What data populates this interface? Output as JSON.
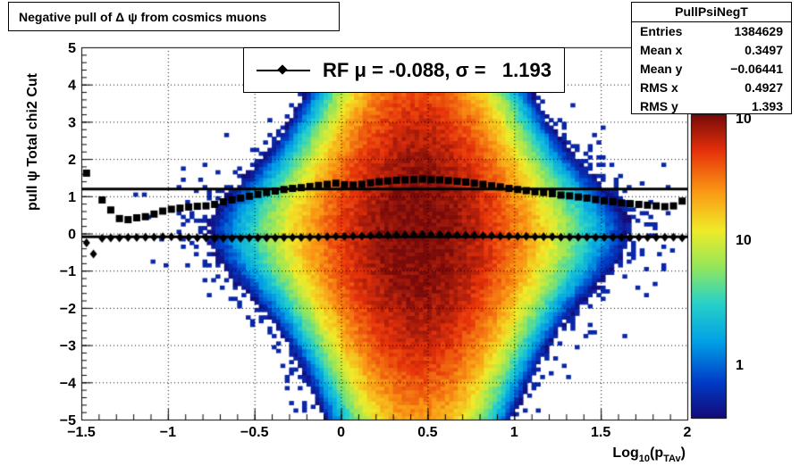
{
  "title": "Negative pull of Δ ψ from cosmics muons",
  "stats": {
    "name": "PullPsiNegT",
    "rows": [
      {
        "label": "Entries",
        "value": "1384629"
      },
      {
        "label": "Mean x",
        "value": "0.3497"
      },
      {
        "label": "Mean y",
        "value": "−0.06441"
      },
      {
        "label": "RMS x",
        "value": "0.4927"
      },
      {
        "label": "RMS y",
        "value": "1.393"
      }
    ]
  },
  "legend": {
    "text": "RF μ = -0.088, σ =   1.193"
  },
  "colors": {
    "frame": "#000000",
    "marker": "#000000"
  },
  "chart_data": {
    "type": "heatmap",
    "xlabel": "Log10(pTAv)",
    "xlabel_main": "Log",
    "xlabel_sub1": "10",
    "xlabel_mid": "(p",
    "xlabel_sub2": "TAv",
    "xlabel_end": ")",
    "ylabel": "pull ψ   Total chi2 Cut",
    "xlim": [
      -1.5,
      2
    ],
    "ylim": [
      -5,
      5
    ],
    "xticks": [
      -1.5,
      -1,
      -0.5,
      0,
      0.5,
      1,
      1.5,
      2
    ],
    "xtick_labels": [
      "−1.5",
      "−1",
      "−0.5",
      "0",
      "0.5",
      "1",
      "1.5",
      "2"
    ],
    "yticks": [
      -5,
      -4,
      -3,
      -2,
      -1,
      0,
      1,
      2,
      3,
      4,
      5
    ],
    "ytick_labels": [
      "−5",
      "−4",
      "−3",
      "−2",
      "−1",
      "0",
      "1",
      "2",
      "3",
      "4",
      "5"
    ],
    "grid": true,
    "colorbar": {
      "scale": "log",
      "labels": [
        "1",
        "10",
        "10"
      ],
      "label_values": [
        1,
        10,
        100
      ]
    },
    "series": [
      {
        "marker": "square",
        "points": [
          [
            -1.47,
            1.62
          ],
          [
            -1.38,
            0.9
          ],
          [
            -1.33,
            0.63
          ],
          [
            -1.28,
            0.4
          ],
          [
            -1.23,
            0.37
          ],
          [
            -1.18,
            0.42
          ],
          [
            -1.13,
            0.45
          ],
          [
            -1.08,
            0.52
          ],
          [
            -1.03,
            0.6
          ],
          [
            -0.98,
            0.65
          ],
          [
            -0.93,
            0.68
          ],
          [
            -0.88,
            0.71
          ],
          [
            -0.83,
            0.73
          ],
          [
            -0.78,
            0.74
          ],
          [
            -0.73,
            0.78
          ],
          [
            -0.68,
            0.85
          ],
          [
            -0.63,
            0.9
          ],
          [
            -0.58,
            0.95
          ],
          [
            -0.53,
            1.0
          ],
          [
            -0.48,
            1.05
          ],
          [
            -0.43,
            1.1
          ],
          [
            -0.38,
            1.14
          ],
          [
            -0.33,
            1.18
          ],
          [
            -0.28,
            1.21
          ],
          [
            -0.23,
            1.23
          ],
          [
            -0.18,
            1.26
          ],
          [
            -0.13,
            1.29
          ],
          [
            -0.08,
            1.32
          ],
          [
            -0.03,
            1.35
          ],
          [
            0.02,
            1.31
          ],
          [
            0.07,
            1.3
          ],
          [
            0.12,
            1.32
          ],
          [
            0.17,
            1.36
          ],
          [
            0.22,
            1.39
          ],
          [
            0.27,
            1.41
          ],
          [
            0.32,
            1.43
          ],
          [
            0.37,
            1.44
          ],
          [
            0.42,
            1.45
          ],
          [
            0.47,
            1.46
          ],
          [
            0.52,
            1.45
          ],
          [
            0.57,
            1.44
          ],
          [
            0.62,
            1.42
          ],
          [
            0.67,
            1.4
          ],
          [
            0.72,
            1.38
          ],
          [
            0.77,
            1.35
          ],
          [
            0.82,
            1.32
          ],
          [
            0.87,
            1.28
          ],
          [
            0.92,
            1.25
          ],
          [
            0.97,
            1.21
          ],
          [
            1.02,
            1.18
          ],
          [
            1.07,
            1.15
          ],
          [
            1.12,
            1.12
          ],
          [
            1.17,
            1.1
          ],
          [
            1.22,
            1.07
          ],
          [
            1.27,
            1.03
          ],
          [
            1.32,
            1.01
          ],
          [
            1.37,
            0.98
          ],
          [
            1.42,
            0.95
          ],
          [
            1.47,
            0.91
          ],
          [
            1.52,
            0.88
          ],
          [
            1.57,
            0.85
          ],
          [
            1.62,
            0.82
          ],
          [
            1.67,
            0.8
          ],
          [
            1.72,
            0.78
          ],
          [
            1.77,
            0.76
          ],
          [
            1.82,
            0.74
          ],
          [
            1.87,
            0.72
          ],
          [
            1.92,
            0.74
          ],
          [
            1.97,
            0.87
          ]
        ]
      },
      {
        "marker": "diamond",
        "points": [
          [
            -1.47,
            -0.25
          ],
          [
            -1.43,
            -0.55
          ],
          [
            -1.38,
            -0.13
          ],
          [
            -1.33,
            -0.12
          ],
          [
            -1.28,
            -0.12
          ],
          [
            -1.23,
            -0.11
          ],
          [
            -1.18,
            -0.11
          ],
          [
            -1.13,
            -0.1
          ],
          [
            -1.08,
            -0.1
          ],
          [
            -1.03,
            -0.09
          ],
          [
            -0.98,
            -0.09
          ],
          [
            -0.93,
            -0.1
          ],
          [
            -0.88,
            -0.11
          ],
          [
            -0.83,
            -0.12
          ],
          [
            -0.78,
            -0.12
          ],
          [
            -0.73,
            -0.13
          ],
          [
            -0.68,
            -0.13
          ],
          [
            -0.63,
            -0.13
          ],
          [
            -0.58,
            -0.13
          ],
          [
            -0.53,
            -0.12
          ],
          [
            -0.48,
            -0.12
          ],
          [
            -0.43,
            -0.12
          ],
          [
            -0.38,
            -0.12
          ],
          [
            -0.33,
            -0.11
          ],
          [
            -0.28,
            -0.11
          ],
          [
            -0.23,
            -0.11
          ],
          [
            -0.18,
            -0.1
          ],
          [
            -0.13,
            -0.1
          ],
          [
            -0.08,
            -0.09
          ],
          [
            -0.03,
            -0.08
          ],
          [
            0.02,
            -0.08
          ],
          [
            0.07,
            -0.07
          ],
          [
            0.12,
            -0.07
          ],
          [
            0.17,
            -0.06
          ],
          [
            0.22,
            -0.05
          ],
          [
            0.27,
            -0.05
          ],
          [
            0.32,
            -0.04
          ],
          [
            0.37,
            -0.04
          ],
          [
            0.42,
            -0.03
          ],
          [
            0.47,
            -0.03
          ],
          [
            0.52,
            -0.03
          ],
          [
            0.57,
            -0.03
          ],
          [
            0.62,
            -0.04
          ],
          [
            0.67,
            -0.04
          ],
          [
            0.72,
            -0.05
          ],
          [
            0.77,
            -0.05
          ],
          [
            0.82,
            -0.06
          ],
          [
            0.87,
            -0.06
          ],
          [
            0.92,
            -0.07
          ],
          [
            0.97,
            -0.07
          ],
          [
            1.02,
            -0.08
          ],
          [
            1.07,
            -0.08
          ],
          [
            1.12,
            -0.09
          ],
          [
            1.17,
            -0.09
          ],
          [
            1.22,
            -0.09
          ],
          [
            1.27,
            -0.1
          ],
          [
            1.32,
            -0.1
          ],
          [
            1.37,
            -0.1
          ],
          [
            1.42,
            -0.1
          ],
          [
            1.47,
            -0.11
          ],
          [
            1.52,
            -0.11
          ],
          [
            1.57,
            -0.11
          ],
          [
            1.62,
            -0.11
          ],
          [
            1.67,
            -0.11
          ],
          [
            1.72,
            -0.11
          ],
          [
            1.77,
            -0.11
          ],
          [
            1.82,
            -0.11
          ],
          [
            1.87,
            -0.1
          ],
          [
            1.92,
            -0.1
          ],
          [
            1.97,
            -0.12
          ]
        ]
      }
    ],
    "fit_lines": [
      {
        "x": [
          -1.5,
          2
        ],
        "y": [
          1.193,
          1.193
        ]
      },
      {
        "x": [
          -1.5,
          2
        ],
        "y": [
          -0.088,
          -0.088
        ]
      }
    ]
  }
}
